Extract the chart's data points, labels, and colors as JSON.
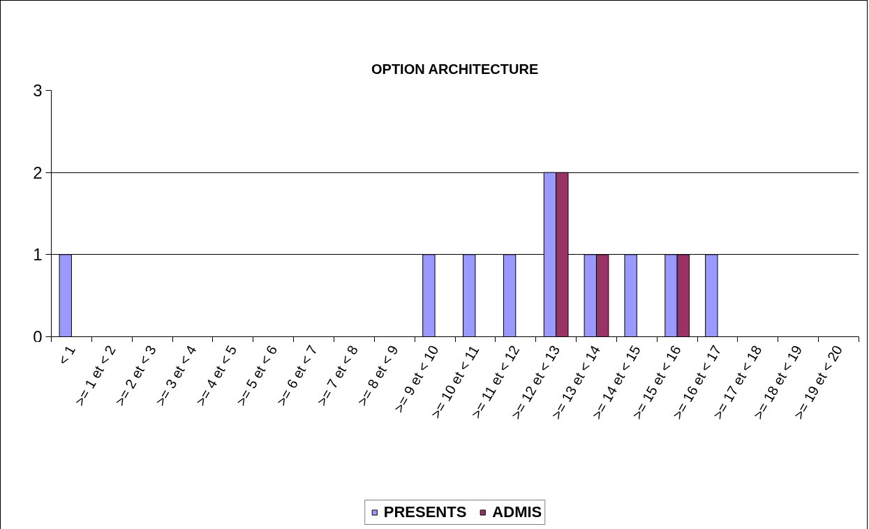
{
  "chart_data": {
    "type": "bar",
    "title": "OPTION ARCHITECTURE",
    "categories": [
      "< 1",
      ">= 1 et < 2",
      ">= 2 et < 3",
      ">= 3 et < 4",
      ">= 4 et < 5",
      ">= 5 et < 6",
      ">= 6 et < 7",
      ">= 7 et < 8",
      ">= 8 et < 9",
      ">= 9 et < 10",
      ">= 10 et < 11",
      ">= 11 et < 12",
      ">= 12 et < 13",
      ">= 13 et < 14",
      ">= 14 et < 15",
      ">= 15 et < 16",
      ">= 16 et < 17",
      ">= 17 et < 18",
      ">= 18 et < 19",
      ">= 19 et < 20"
    ],
    "series": [
      {
        "name": "PRESENTS",
        "color": "#9999ff",
        "values": [
          1,
          0,
          0,
          0,
          0,
          0,
          0,
          0,
          0,
          1,
          1,
          1,
          2,
          1,
          1,
          1,
          1,
          0,
          0,
          0
        ]
      },
      {
        "name": "ADMIS",
        "color": "#993366",
        "values": [
          0,
          0,
          0,
          0,
          0,
          0,
          0,
          0,
          0,
          0,
          0,
          0,
          2,
          1,
          0,
          1,
          0,
          0,
          0,
          0
        ]
      }
    ],
    "ylim": [
      0,
      3
    ],
    "yticks": [
      0,
      1,
      2,
      3
    ],
    "grid": "y",
    "legend": "bottom"
  }
}
